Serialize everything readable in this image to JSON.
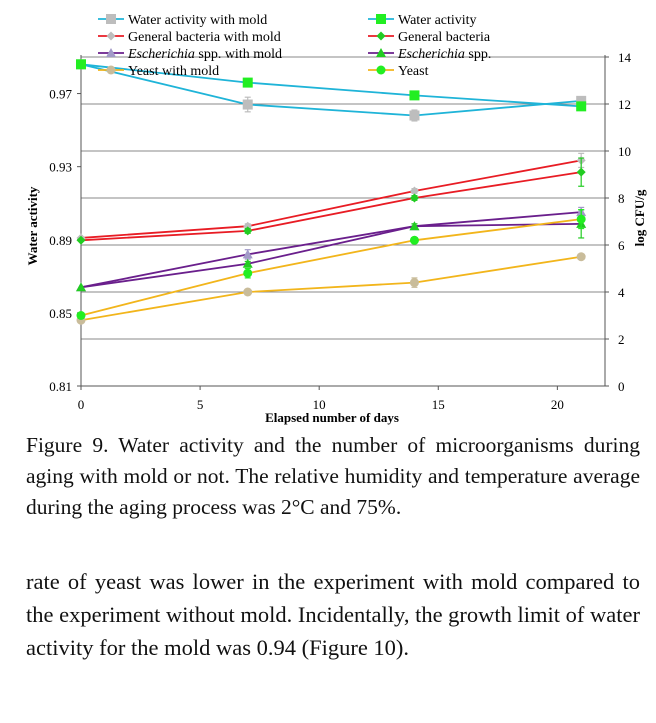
{
  "chart_data": {
    "type": "line",
    "xlabel": "Elapsed number of days",
    "ylabel_left": "Water activity",
    "ylabel_right": "log CFU/g",
    "xlim": [
      0,
      22
    ],
    "ylim_left": [
      0.81,
      0.99
    ],
    "ylim_right": [
      0,
      14
    ],
    "x_ticks": [
      0,
      5,
      10,
      15,
      20
    ],
    "x_tick_labels": [
      "0",
      "5",
      "10",
      "15",
      "20"
    ],
    "y_left_ticks": [
      0.81,
      0.85,
      0.89,
      0.93,
      0.97
    ],
    "y_left_tick_labels": [
      "0.81",
      "0.85",
      "0.89",
      "0.93",
      "0.97"
    ],
    "y_right_ticks": [
      0,
      2,
      4,
      6,
      8,
      10,
      12,
      14
    ],
    "y_right_tick_labels": [
      "0",
      "2",
      "4",
      "6",
      "8",
      "10",
      "12",
      "14"
    ],
    "grid": "horizontal",
    "legend_position": "top",
    "series": [
      {
        "name": "Water activity with mold",
        "name_prefix": "",
        "name_italic": "",
        "name_suffix": "Water activity with mold",
        "axis": "left",
        "color": "#1fb4d8",
        "marker": "square",
        "marker_color": "#bdbdbd",
        "x": [
          0,
          7,
          14,
          21
        ],
        "values": [
          0.986,
          0.964,
          0.958,
          0.966
        ],
        "error": [
          0,
          0.004,
          0.003,
          0.002
        ]
      },
      {
        "name": "Water activity",
        "name_prefix": "",
        "name_italic": "",
        "name_suffix": "Water activity",
        "axis": "left",
        "color": "#1fb4d8",
        "marker": "square",
        "marker_color": "#22ee22",
        "x": [
          0,
          7,
          14,
          21
        ],
        "values": [
          0.986,
          0.976,
          0.969,
          0.963
        ],
        "error": [
          0,
          0.001,
          0.002,
          0.002
        ]
      },
      {
        "name": "General bacteria with mold",
        "name_prefix": "",
        "name_italic": "",
        "name_suffix": "General bacteria with mold",
        "axis": "right",
        "color": "#e81c24",
        "marker": "diamond",
        "marker_color": "#bdbdbd",
        "x": [
          0,
          7,
          14,
          21
        ],
        "values": [
          6.3,
          6.8,
          8.3,
          9.6
        ],
        "error": [
          0,
          0.1,
          0.1,
          0.3
        ]
      },
      {
        "name": "General bacteria",
        "name_prefix": "",
        "name_italic": "",
        "name_suffix": "General bacteria",
        "axis": "right",
        "color": "#e81c24",
        "marker": "diamond",
        "marker_color": "#22cc22",
        "x": [
          0,
          7,
          14,
          21
        ],
        "values": [
          6.2,
          6.6,
          8.0,
          9.1
        ],
        "error": [
          0,
          0.1,
          0.1,
          0.6
        ]
      },
      {
        "name": "Escherichia spp. with mold",
        "name_prefix": "",
        "name_italic": "Escherichia",
        "name_suffix": " spp. with mold",
        "axis": "right",
        "color": "#6a1f8c",
        "marker": "triangle",
        "marker_color": "#a29ac8",
        "x": [
          0,
          7,
          14,
          21
        ],
        "values": [
          4.2,
          5.6,
          6.8,
          7.4
        ],
        "error": [
          0,
          0.2,
          0.1,
          0.2
        ]
      },
      {
        "name": "Escherichia spp.",
        "name_prefix": "",
        "name_italic": "Escherichia",
        "name_suffix": " spp.",
        "axis": "right",
        "color": "#6a1f8c",
        "marker": "triangle",
        "marker_color": "#22cc22",
        "x": [
          0,
          7,
          14,
          21
        ],
        "values": [
          4.2,
          5.2,
          6.8,
          6.9
        ],
        "error": [
          0,
          0.1,
          0.1,
          0.6
        ]
      },
      {
        "name": "Yeast with mold",
        "name_prefix": "",
        "name_italic": "",
        "name_suffix": "Yeast with mold",
        "axis": "right",
        "color": "#f2b51b",
        "marker": "circle",
        "marker_color": "#c9bc9a",
        "x": [
          0,
          7,
          14,
          21
        ],
        "values": [
          2.8,
          4.0,
          4.4,
          5.5
        ],
        "error": [
          0,
          0.1,
          0.2,
          0.1
        ]
      },
      {
        "name": "Yeast",
        "name_prefix": "",
        "name_italic": "",
        "name_suffix": "Yeast",
        "axis": "right",
        "color": "#f2b51b",
        "marker": "circle",
        "marker_color": "#22ee22",
        "x": [
          0,
          7,
          14,
          21
        ],
        "values": [
          3.0,
          4.8,
          6.2,
          7.1
        ],
        "error": [
          0,
          0.2,
          0.1,
          0.4
        ]
      }
    ]
  },
  "caption": "Figure 9. Water activity and the number of microorganisms during aging with mold or not. The relative humidity and temperature average during the aging process was 2°C and 75%.",
  "body_text": "rate of yeast was lower in the experiment with mold compared to the experiment without mold. Incidentally, the growth limit of water activity for the mold was 0.94 (Figure 10)."
}
